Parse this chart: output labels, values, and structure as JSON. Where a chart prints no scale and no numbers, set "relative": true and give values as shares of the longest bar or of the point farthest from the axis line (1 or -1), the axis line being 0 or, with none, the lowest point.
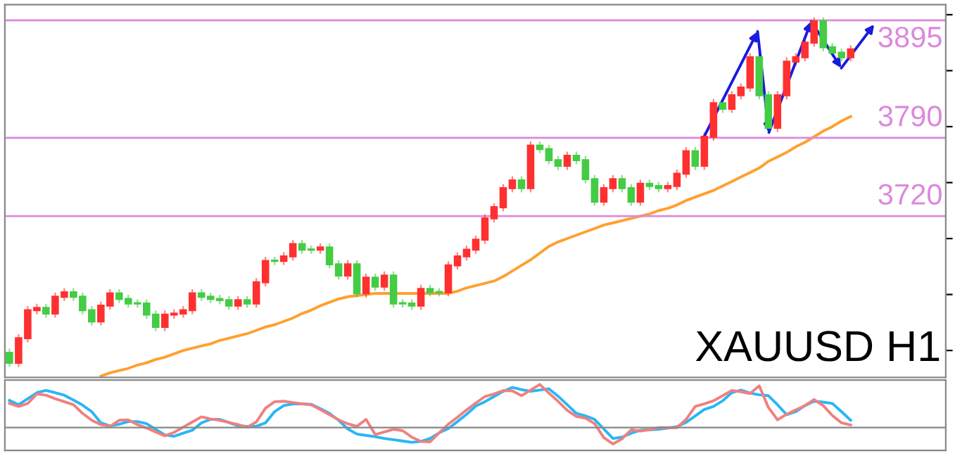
{
  "chart_data": [
    {
      "type": "candlestick",
      "categories": [
        null,
        null,
        null,
        null,
        null,
        null,
        null,
        null,
        null,
        null,
        null,
        null,
        null,
        null,
        null,
        null,
        null,
        null,
        null,
        null,
        null,
        null,
        null,
        null,
        null,
        null,
        null,
        null,
        null,
        null,
        null,
        null,
        null,
        null,
        null,
        null,
        null,
        null,
        null,
        null,
        null,
        null,
        null,
        null,
        null,
        null,
        null,
        null,
        null,
        null,
        null,
        null,
        null,
        null,
        null,
        null,
        null,
        null,
        null,
        null,
        null,
        null,
        null,
        null,
        null,
        null,
        null,
        null,
        null,
        null,
        null,
        null,
        null,
        null,
        null,
        null,
        null,
        null,
        null,
        null,
        null,
        null,
        null,
        null,
        null,
        null,
        null,
        null,
        null,
        null,
        null,
        null,
        null
      ],
      "ohlc": [
        [
          3598,
          3601,
          3586,
          3589
        ],
        [
          3589,
          3614,
          3586,
          3611
        ],
        [
          3611,
          3639,
          3608,
          3636
        ],
        [
          3636,
          3641,
          3633,
          3638
        ],
        [
          3638,
          3641,
          3630,
          3633
        ],
        [
          3633,
          3651,
          3630,
          3648
        ],
        [
          3648,
          3655,
          3645,
          3652
        ],
        [
          3652,
          3655,
          3645,
          3648
        ],
        [
          3648,
          3651,
          3633,
          3636
        ],
        [
          3636,
          3639,
          3623,
          3626
        ],
        [
          3626,
          3643,
          3623,
          3640
        ],
        [
          3640,
          3654,
          3637,
          3651
        ],
        [
          3651,
          3654,
          3643,
          3646
        ],
        [
          3646,
          3649,
          3639,
          3642
        ],
        [
          3642,
          3645,
          3639,
          3642
        ],
        [
          3642,
          3645,
          3629,
          3632
        ],
        [
          3632,
          3635,
          3618,
          3621
        ],
        [
          3621,
          3635,
          3618,
          3632
        ],
        [
          3632,
          3636,
          3629,
          3633
        ],
        [
          3633,
          3639,
          3630,
          3636
        ],
        [
          3636,
          3654,
          3633,
          3651
        ],
        [
          3651,
          3654,
          3645,
          3648
        ],
        [
          3648,
          3651,
          3643,
          3646
        ],
        [
          3646,
          3649,
          3642,
          3645
        ],
        [
          3645,
          3648,
          3637,
          3640
        ],
        [
          3640,
          3648,
          3637,
          3645
        ],
        [
          3645,
          3648,
          3639,
          3642
        ],
        [
          3642,
          3664,
          3639,
          3661
        ],
        [
          3661,
          3683,
          3658,
          3680
        ],
        [
          3680,
          3683,
          3677,
          3680
        ],
        [
          3680,
          3687,
          3677,
          3684
        ],
        [
          3684,
          3698,
          3681,
          3695
        ],
        [
          3695,
          3698,
          3687,
          3690
        ],
        [
          3690,
          3693,
          3687,
          3690
        ],
        [
          3690,
          3695,
          3687,
          3692
        ],
        [
          3692,
          3695,
          3674,
          3677
        ],
        [
          3677,
          3680,
          3664,
          3667
        ],
        [
          3667,
          3680,
          3664,
          3677
        ],
        [
          3677,
          3680,
          3648,
          3651
        ],
        [
          3651,
          3668,
          3648,
          3665
        ],
        [
          3665,
          3668,
          3654,
          3657
        ],
        [
          3657,
          3670,
          3654,
          3667
        ],
        [
          3667,
          3670,
          3639,
          3642
        ],
        [
          3642,
          3645,
          3639,
          3642
        ],
        [
          3642,
          3645,
          3637,
          3640
        ],
        [
          3640,
          3658,
          3637,
          3655
        ],
        [
          3655,
          3658,
          3649,
          3652
        ],
        [
          3652,
          3655,
          3649,
          3652
        ],
        [
          3652,
          3679,
          3649,
          3676
        ],
        [
          3676,
          3687,
          3673,
          3684
        ],
        [
          3684,
          3693,
          3681,
          3690
        ],
        [
          3690,
          3702,
          3687,
          3699
        ],
        [
          3699,
          3721,
          3696,
          3718
        ],
        [
          3718,
          3731,
          3715,
          3728
        ],
        [
          3728,
          3748,
          3725,
          3745
        ],
        [
          3745,
          3755,
          3742,
          3752
        ],
        [
          3752,
          3755,
          3742,
          3745
        ],
        [
          3745,
          3786,
          3742,
          3783
        ],
        [
          3783,
          3786,
          3777,
          3780
        ],
        [
          3780,
          3783,
          3767,
          3770
        ],
        [
          3770,
          3773,
          3762,
          3765
        ],
        [
          3765,
          3777,
          3762,
          3774
        ],
        [
          3774,
          3777,
          3767,
          3770
        ],
        [
          3770,
          3773,
          3750,
          3753
        ],
        [
          3753,
          3756,
          3730,
          3733
        ],
        [
          3733,
          3748,
          3730,
          3745
        ],
        [
          3745,
          3756,
          3742,
          3753
        ],
        [
          3753,
          3756,
          3742,
          3745
        ],
        [
          3745,
          3748,
          3730,
          3733
        ],
        [
          3733,
          3752,
          3730,
          3749
        ],
        [
          3749,
          3752,
          3744,
          3747
        ],
        [
          3747,
          3750,
          3742,
          3745
        ],
        [
          3745,
          3750,
          3742,
          3747
        ],
        [
          3747,
          3761,
          3744,
          3758
        ],
        [
          3758,
          3781,
          3755,
          3778
        ],
        [
          3778,
          3781,
          3762,
          3765
        ],
        [
          3765,
          3794,
          3762,
          3791
        ],
        [
          3791,
          3824,
          3788,
          3821
        ],
        [
          3821,
          3824,
          3813,
          3816
        ],
        [
          3816,
          3831,
          3813,
          3828
        ],
        [
          3828,
          3838,
          3825,
          3835
        ],
        [
          3835,
          3865,
          3832,
          3862
        ],
        [
          3862,
          3865,
          3825,
          3828
        ],
        [
          3828,
          3831,
          3796,
          3799
        ],
        [
          3799,
          3831,
          3796,
          3828
        ],
        [
          3828,
          3861,
          3825,
          3858
        ],
        [
          3858,
          3865,
          3855,
          3862
        ],
        [
          3862,
          3878,
          3859,
          3875
        ],
        [
          3875,
          3897,
          3872,
          3894
        ],
        [
          3894,
          3897,
          3868,
          3871
        ],
        [
          3871,
          3874,
          3863,
          3866
        ],
        [
          3866,
          3869,
          3859,
          3862
        ],
        [
          3862,
          3872,
          3859,
          3869
        ]
      ],
      "colors": [
        "#44cc44",
        "#ff3030",
        "#ff3030",
        "#ff3030",
        "#44cc44",
        "#ff3030",
        "#ff3030",
        "#44cc44",
        "#44cc44",
        "#44cc44",
        "#ff3030",
        "#ff3030",
        "#44cc44",
        "#44cc44",
        "#44cc44",
        "#44cc44",
        "#44cc44",
        "#ff3030",
        "#ff3030",
        "#ff3030",
        "#ff3030",
        "#44cc44",
        "#44cc44",
        "#44cc44",
        "#44cc44",
        "#ff3030",
        "#44cc44",
        "#ff3030",
        "#ff3030",
        "#44cc44",
        "#ff3030",
        "#ff3030",
        "#44cc44",
        "#44cc44",
        "#ff3030",
        "#44cc44",
        "#44cc44",
        "#ff3030",
        "#44cc44",
        "#ff3030",
        "#44cc44",
        "#ff3030",
        "#44cc44",
        "#44cc44",
        "#44cc44",
        "#ff3030",
        "#44cc44",
        "#44cc44",
        "#ff3030",
        "#ff3030",
        "#ff3030",
        "#ff3030",
        "#ff3030",
        "#ff3030",
        "#ff3030",
        "#ff3030",
        "#44cc44",
        "#ff3030",
        "#44cc44",
        "#44cc44",
        "#44cc44",
        "#ff3030",
        "#44cc44",
        "#44cc44",
        "#44cc44",
        "#ff3030",
        "#ff3030",
        "#44cc44",
        "#44cc44",
        "#ff3030",
        "#44cc44",
        "#44cc44",
        "#ff3030",
        "#ff3030",
        "#ff3030",
        "#44cc44",
        "#ff3030",
        "#ff3030",
        "#44cc44",
        "#ff3030",
        "#ff3030",
        "#ff3030",
        "#44cc44",
        "#44cc44",
        "#ff3030",
        "#ff3030",
        "#ff3030",
        "#ff3030",
        "#ff3030",
        "#44cc44",
        "#44cc44",
        "#44cc44",
        "#ff3030"
      ],
      "series": [
        {
          "type": "line",
          "color": "#ffa030",
          "values": [
            null,
            null,
            null,
            null,
            null,
            null,
            null,
            null,
            null,
            null,
            3577,
            3580,
            3582,
            3584,
            3587,
            3589,
            3592,
            3594,
            3597,
            3600,
            3602,
            3604,
            3606,
            3609,
            3611,
            3613,
            3615,
            3618,
            3621,
            3623,
            3626,
            3629,
            3633,
            3636,
            3640,
            3643,
            3646,
            3648,
            3649,
            3650,
            3651,
            3651,
            3651,
            3651,
            3651,
            3651,
            3651,
            3651,
            3651,
            3653,
            3656,
            3658,
            3660,
            3662,
            3666,
            3671,
            3676,
            3681,
            3687,
            3693,
            3697,
            3700,
            3703,
            3706,
            3709,
            3712,
            3714,
            3716,
            3718,
            3720,
            3722,
            3725,
            3727,
            3730,
            3734,
            3737,
            3740,
            3743,
            3747,
            3751,
            3755,
            3759,
            3763,
            3769,
            3773,
            3777,
            3782,
            3786,
            3791,
            3796,
            3800,
            3805,
            3809
          ]
        }
      ],
      "ylim": [
        3576,
        3909
      ],
      "tick_labels": false,
      "ref_lines": [
        {
          "axis": "y",
          "value": 3895,
          "label": "3895",
          "color": "#dd88dd"
        },
        {
          "axis": "y",
          "value": 3790,
          "label": "3790",
          "color": "#dd88dd"
        },
        {
          "axis": "y",
          "value": 3720,
          "label": "3720",
          "color": "#dd88dd"
        }
      ],
      "annotations": [
        "XAUUSD H1"
      ]
    },
    {
      "type": "line",
      "relative": true,
      "tick_labels": false,
      "categories": [
        null,
        null,
        null,
        null,
        null,
        null,
        null,
        null,
        null,
        null,
        null,
        null,
        null,
        null,
        null,
        null,
        null,
        null,
        null,
        null,
        null,
        null,
        null,
        null,
        null,
        null,
        null,
        null,
        null,
        null,
        null,
        null,
        null,
        null,
        null,
        null,
        null,
        null,
        null,
        null,
        null,
        null,
        null,
        null,
        null,
        null,
        null,
        null,
        null,
        null,
        null,
        null,
        null,
        null,
        null,
        null,
        null,
        null,
        null,
        null,
        null,
        null,
        null,
        null,
        null,
        null,
        null,
        null,
        null,
        null,
        null,
        null,
        null,
        null,
        null,
        null,
        null,
        null,
        null,
        null,
        null,
        null,
        null,
        null,
        null,
        null,
        null,
        null,
        null,
        null,
        null,
        null,
        null
      ],
      "series": [
        {
          "color": "#29b6f6",
          "values": [
            0.63,
            0.53,
            0.67,
            0.81,
            0.86,
            0.81,
            0.75,
            0.64,
            0.52,
            0.37,
            0.11,
            0.04,
            0.08,
            0.14,
            0.14,
            0.09,
            -0.04,
            -0.17,
            -0.2,
            -0.13,
            -0.06,
            0.11,
            0.19,
            0.19,
            0.12,
            0.04,
            0.03,
            0.03,
            0.11,
            0.37,
            0.51,
            0.55,
            0.55,
            0.54,
            0.44,
            0.33,
            0.17,
            -0.03,
            -0.15,
            -0.18,
            -0.21,
            -0.25,
            -0.28,
            -0.31,
            -0.34,
            -0.32,
            -0.25,
            -0.12,
            -0.02,
            0.14,
            0.31,
            0.5,
            0.6,
            0.72,
            0.84,
            0.93,
            0.88,
            0.84,
            0.87,
            0.9,
            0.73,
            0.53,
            0.33,
            0.27,
            0.19,
            -0.03,
            -0.25,
            -0.22,
            -0.13,
            -0.06,
            -0.05,
            -0.04,
            -0.01,
            0.02,
            0.12,
            0.27,
            0.42,
            0.49,
            0.62,
            0.81,
            0.87,
            0.8,
            0.76,
            0.74,
            0.53,
            0.3,
            0.37,
            0.51,
            0.61,
            0.59,
            0.56,
            0.37,
            0.17
          ]
        },
        {
          "color": "#f08080",
          "values": [
            0.56,
            0.49,
            0.56,
            0.78,
            0.75,
            0.67,
            0.6,
            0.53,
            0.33,
            0.17,
            0.07,
            0.03,
            0.17,
            0.18,
            0.07,
            -0.01,
            -0.1,
            -0.19,
            -0.11,
            0.01,
            0.13,
            0.25,
            0.2,
            0.17,
            0.12,
            0.07,
            0.01,
            0.13,
            0.45,
            0.6,
            0.61,
            0.58,
            0.55,
            0.53,
            0.42,
            0.3,
            0.18,
            0.09,
            0.03,
            0.19,
            -0.16,
            -0.1,
            -0.04,
            -0.07,
            -0.22,
            -0.32,
            -0.33,
            -0.12,
            0.08,
            0.24,
            0.41,
            0.57,
            0.72,
            0.78,
            0.86,
            0.85,
            0.74,
            0.87,
            1,
            0.8,
            0.61,
            0.4,
            0.26,
            0.22,
            0.09,
            -0.23,
            -0.38,
            -0.26,
            -0.05,
            -0.08,
            -0.05,
            0,
            0,
            0,
            0.19,
            0.49,
            0.55,
            0.62,
            0.74,
            0.86,
            0.83,
            0.79,
            0.97,
            0.47,
            0.18,
            0.31,
            0.41,
            0.51,
            0.65,
            0.51,
            0.28,
            0.11,
            0.06
          ]
        }
      ]
    }
  ]
}
